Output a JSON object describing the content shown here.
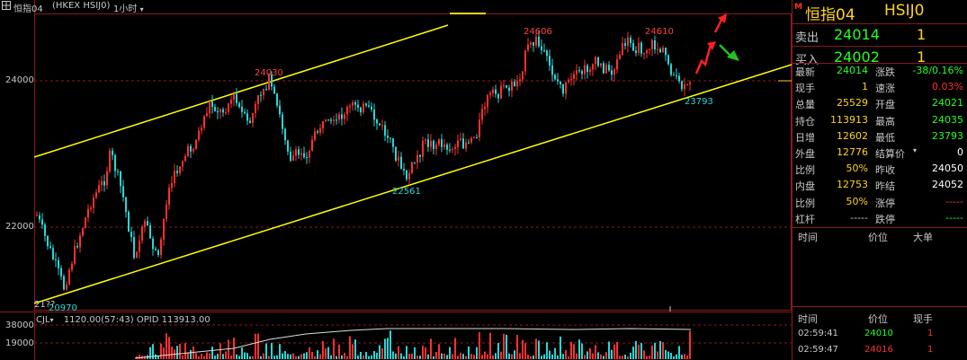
{
  "chart_header": {
    "indicator_icon": "grid-icon",
    "instrument": "恒指04",
    "symbol": "(HKEX HSIJ0)",
    "period": "1小时",
    "period_arrow": "chevron-down-icon"
  },
  "main_chart": {
    "y_ticks": [
      {
        "value": 24000,
        "label": "24000"
      },
      {
        "value": 22000,
        "label": "22000"
      }
    ],
    "annotations": [
      {
        "label": "24030",
        "color": "#ff4040"
      },
      {
        "label": "24606",
        "color": "#ff4040"
      },
      {
        "label": "24610",
        "color": "#ff4040"
      },
      {
        "label": "22561",
        "color": "#25d8d8"
      },
      {
        "label": "23793",
        "color": "#25d8d8"
      },
      {
        "label": "20970",
        "color": "#25d8d8"
      },
      {
        "label": "21??",
        "color": "#c8c8c8"
      }
    ],
    "colors": {
      "up": "#ff3030",
      "down": "#25d8d8",
      "channel": "#ffff00",
      "grid": "#8a1a1a"
    }
  },
  "volume_chart": {
    "indicator": "CJL",
    "indicator_arrow": "chevron-down-icon",
    "info": "1120.00(57:43)  OPID 113913.00",
    "y_ticks": [
      {
        "value": 38000,
        "label": "38000"
      },
      {
        "value": 19000,
        "label": "19000"
      }
    ]
  },
  "quote_panel": {
    "flag": "M",
    "name": "恒指04",
    "code": "HSIJ0",
    "ask": {
      "label": "卖出",
      "price": "24014",
      "volume": "1"
    },
    "bid": {
      "label": "买入",
      "price": "24002",
      "volume": "1"
    },
    "stats_left": [
      {
        "label": "最新",
        "value": "24014",
        "color": "#22ff22"
      },
      {
        "label": "现手",
        "value": "1",
        "color": "#ffd21f"
      },
      {
        "label": "总量",
        "value": "25529",
        "color": "#ffd21f"
      },
      {
        "label": "持仓",
        "value": "113913",
        "color": "#ffd21f"
      },
      {
        "label": "日增",
        "value": "12602",
        "color": "#ffd21f"
      },
      {
        "label": "外盘",
        "value": "12776",
        "color": "#ffd21f"
      },
      {
        "label": "比例",
        "value": "50%",
        "color": "#ffd21f"
      },
      {
        "label": "内盘",
        "value": "12753",
        "color": "#ffd21f"
      },
      {
        "label": "比例",
        "value": "50%",
        "color": "#ffd21f"
      },
      {
        "label": "杠杆",
        "value": "-----",
        "color": "#c8c8c8"
      }
    ],
    "stats_right": [
      {
        "label": "涨跌",
        "value": "-38/0.16%",
        "color": "#22ff22"
      },
      {
        "label": "速涨",
        "value": "0.03%",
        "color": "#ff3030"
      },
      {
        "label": "开盘",
        "value": "24021",
        "color": "#22ff22"
      },
      {
        "label": "最高",
        "value": "24035",
        "color": "#22ff22"
      },
      {
        "label": "最低",
        "value": "23793",
        "color": "#22ff22"
      },
      {
        "label": "结算价",
        "value": "0",
        "color": "#ffffff"
      },
      {
        "label": "昨收",
        "value": "24050",
        "color": "#ffffff"
      },
      {
        "label": "昨结",
        "value": "24052",
        "color": "#ffffff"
      },
      {
        "label": "涨停",
        "value": "-----",
        "color": "#ff3030"
      },
      {
        "label": "跌停",
        "value": "-----",
        "color": "#22ff22"
      }
    ],
    "settle_arrow": "chevron-down-icon",
    "tape_header_1": {
      "time": "时间",
      "price": "价位",
      "size": "大单"
    },
    "tape_header_2": {
      "time": "时间",
      "price": "价位",
      "size": "现手"
    },
    "trades": [
      {
        "time": "02:59:41",
        "price": "24010",
        "size": "1",
        "price_color": "#22ff22"
      },
      {
        "time": "02:59:47",
        "price": "24016",
        "size": "1",
        "price_color": "#ff3030"
      }
    ]
  }
}
